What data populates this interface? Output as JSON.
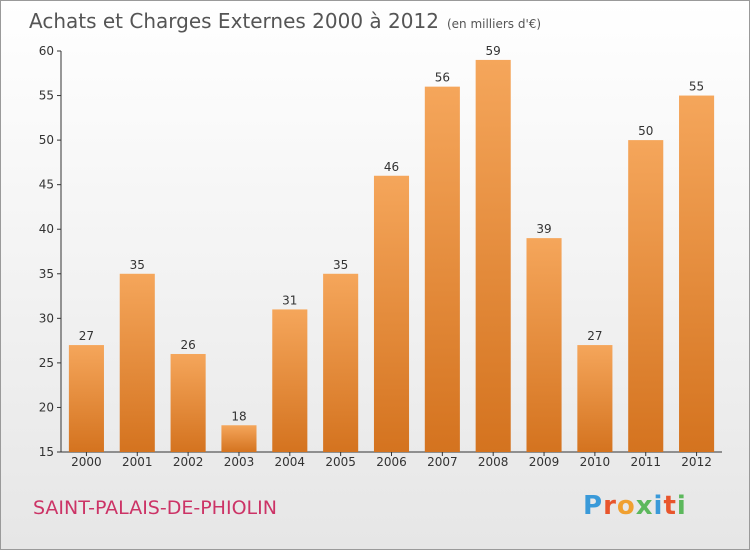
{
  "header": {
    "title": "Achats et Charges Externes 2000 à 2012",
    "subtitle": "(en milliers d'€)"
  },
  "footer": {
    "location": "SAINT-PALAIS-DE-PHIOLIN",
    "brand": "Proxiti"
  },
  "colors": {
    "bar_top": "#f5a65b",
    "bar_bottom": "#d4731f",
    "location": "#cc3366",
    "brand_letters": [
      "#3a9ad9",
      "#e8552c",
      "#f0a030",
      "#5cb85c",
      "#3a9ad9",
      "#e8552c",
      "#5cb85c"
    ]
  },
  "chart_data": {
    "type": "bar",
    "title": "Achats et Charges Externes 2000 à 2012",
    "subtitle": "(en milliers d'€)",
    "categories": [
      "2000",
      "2001",
      "2002",
      "2003",
      "2004",
      "2005",
      "2006",
      "2007",
      "2008",
      "2009",
      "2010",
      "2011",
      "2012"
    ],
    "values": [
      27,
      35,
      26,
      18,
      31,
      35,
      46,
      56,
      59,
      39,
      27,
      50,
      55
    ],
    "xlabel": "",
    "ylabel": "",
    "ylim": [
      15,
      60
    ],
    "yticks": [
      15,
      20,
      25,
      30,
      35,
      40,
      45,
      50,
      55,
      60
    ],
    "grid": false,
    "data_labels": true
  }
}
